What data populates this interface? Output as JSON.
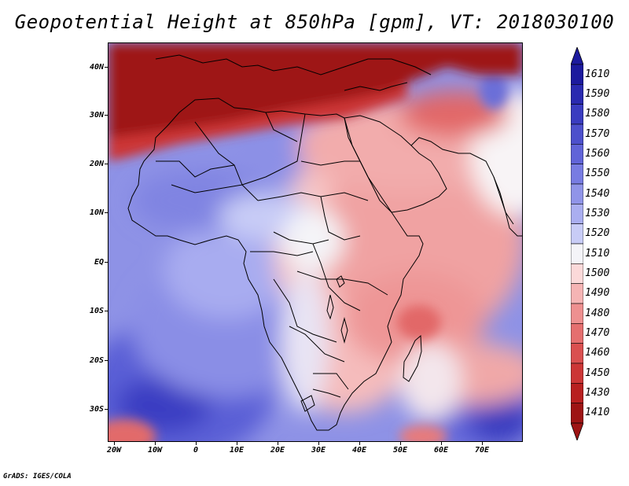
{
  "title": "Geopotential Height at 850hPa [gpm], VT: 2018030100",
  "credit": "GrADS: IGES/COLA",
  "lat_labels": [
    "40N",
    "30N",
    "20N",
    "10N",
    "EQ",
    "10S",
    "20S",
    "30S"
  ],
  "lon_labels": [
    "20W",
    "10W",
    "0",
    "10E",
    "20E",
    "30E",
    "40E",
    "50E",
    "60E",
    "70E"
  ],
  "colorbar": {
    "labels": [
      "1610",
      "1590",
      "1580",
      "1570",
      "1560",
      "1550",
      "1540",
      "1530",
      "1520",
      "1510",
      "1500",
      "1490",
      "1480",
      "1470",
      "1460",
      "1450",
      "1430",
      "1410"
    ],
    "colors": [
      "#1c1a9e",
      "#2a2ab0",
      "#3a3cc0",
      "#4d50cc",
      "#6164d8",
      "#787ce2",
      "#9094e8",
      "#aaaef0",
      "#c8ccf6",
      "#f4f4f8",
      "#fbd9d9",
      "#f5b4b4",
      "#ee9090",
      "#e56f6f",
      "#da5050",
      "#cc3636",
      "#b82020",
      "#9e1414"
    ]
  }
}
